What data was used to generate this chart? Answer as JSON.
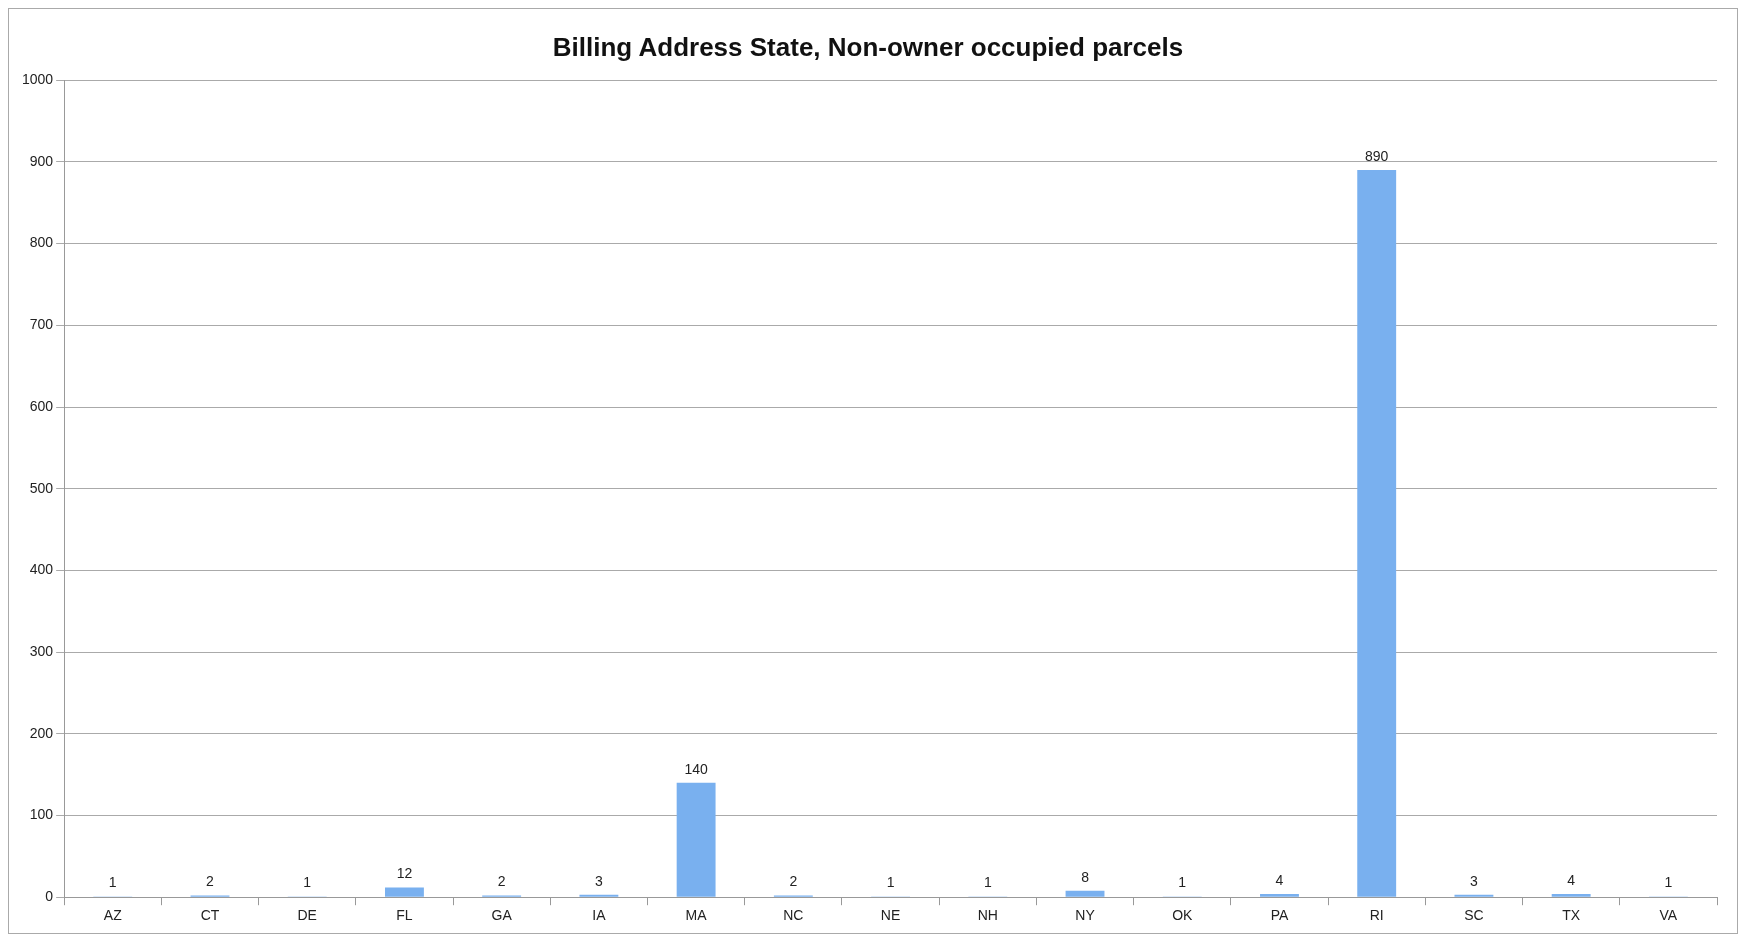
{
  "chart_data": {
    "type": "bar",
    "title": "Billing Address State, Non-owner occupied parcels",
    "categories": [
      "AZ",
      "CT",
      "DE",
      "FL",
      "GA",
      "IA",
      "MA",
      "NC",
      "NE",
      "NH",
      "NY",
      "OK",
      "PA",
      "RI",
      "SC",
      "TX",
      "VA"
    ],
    "values": [
      1,
      2,
      1,
      12,
      2,
      3,
      140,
      2,
      1,
      1,
      8,
      1,
      4,
      890,
      3,
      4,
      1
    ],
    "color": "#79b0ef",
    "ylim": [
      0,
      1000
    ],
    "yticks": [
      0,
      100,
      200,
      300,
      400,
      500,
      600,
      700,
      800,
      900,
      1000
    ],
    "grid": "y",
    "data_labels": true
  }
}
